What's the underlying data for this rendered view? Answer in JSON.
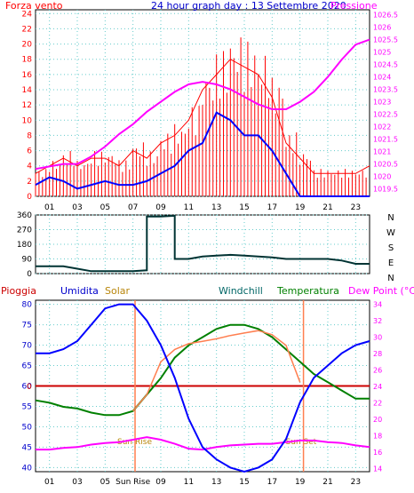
{
  "title": "24 hour graph day : 13 Settembre 2020",
  "hour_ticks": [
    "01",
    "03",
    "05",
    "07",
    "09",
    "11",
    "13",
    "15",
    "17",
    "19",
    "21",
    "23"
  ],
  "colors": {
    "wind": "#ff0000",
    "wind_avg": "#0000ff",
    "pressure": "#ff00ff",
    "direction": "#003333",
    "humidity": "#0000ff",
    "temperature": "#008000",
    "dewpoint": "#ff7f50",
    "solar": "#ff7f50",
    "rain": "#cc0000",
    "grid": "#66cccc"
  },
  "chart_data": [
    {
      "type": "line",
      "labels": {
        "left": "Forza vento",
        "right": "Pressione"
      },
      "y_left": {
        "ticks": [
          "0",
          "2",
          "4",
          "6",
          "8",
          "10",
          "12",
          "14",
          "16",
          "18",
          "20",
          "22",
          "24"
        ],
        "ylim": [
          0,
          24.5
        ]
      },
      "y_right": {
        "ticks": [
          "1019.5",
          "1020",
          "1020.5",
          "1021",
          "1021.5",
          "1022",
          "1022.5",
          "1023",
          "1023.5",
          "1024",
          "1024.5",
          "1025",
          "1025.5",
          "1026",
          "1026.5"
        ],
        "ylim": [
          1019.2,
          1026.7
        ]
      },
      "x_hours": [
        0,
        1,
        2,
        3,
        4,
        5,
        6,
        7,
        8,
        9,
        10,
        11,
        12,
        13,
        14,
        15,
        16,
        17,
        18,
        19,
        20,
        21,
        22,
        23,
        24
      ],
      "series": [
        {
          "axis": "right",
          "values": [
            1020.3,
            1020.4,
            1020.5,
            1020.5,
            1020.8,
            1021.2,
            1021.7,
            1022.1,
            1022.6,
            1023.0,
            1023.4,
            1023.7,
            1023.8,
            1023.7,
            1023.5,
            1023.2,
            1022.9,
            1022.7,
            1022.7,
            1023.0,
            1023.4,
            1024.0,
            1024.7,
            1025.3,
            1025.5
          ]
        },
        {
          "axis": "left",
          "values": [
            3,
            4,
            5,
            4,
            5,
            5,
            4,
            6,
            5,
            7,
            8,
            10,
            14,
            16,
            18,
            17,
            16,
            13,
            7,
            5,
            3,
            3,
            3,
            3,
            4
          ]
        },
        {
          "axis": "left",
          "values": [
            1.5,
            2.5,
            2,
            1,
            1.5,
            2,
            1.5,
            1.5,
            2,
            3,
            4,
            6,
            7,
            11,
            10,
            8,
            8,
            6,
            3,
            0,
            0,
            0,
            0,
            0,
            0
          ]
        }
      ]
    },
    {
      "type": "line",
      "labels": {
        "right_letters": [
          "N",
          "W",
          "S",
          "E",
          "N"
        ]
      },
      "y_left": {
        "ticks": [
          "0",
          "90",
          "180",
          "270",
          "360"
        ],
        "ylim": [
          0,
          360
        ]
      },
      "x_hours": [
        0,
        1,
        2,
        3,
        4,
        5,
        6,
        7,
        8,
        9,
        10,
        11,
        12,
        13,
        14,
        15,
        16,
        17,
        18,
        19,
        20,
        21,
        22,
        23,
        24
      ],
      "series": [
        {
          "values": [
            45,
            45,
            45,
            30,
            15,
            15,
            15,
            15,
            20,
            350,
            355,
            90,
            105,
            110,
            115,
            110,
            105,
            100,
            90,
            90,
            90,
            90,
            80,
            60,
            60
          ]
        }
      ]
    },
    {
      "type": "line",
      "labels": {
        "rain": "Pioggia",
        "humidity": "Umidita",
        "solar": "Solar",
        "windchill": "Windchill",
        "temperature": "Temperatura",
        "dewpoint": "Dew Point (°C)"
      },
      "y_left": {
        "ticks": [
          "40",
          "45",
          "50",
          "55",
          "60",
          "65",
          "70",
          "75",
          "80"
        ],
        "ylim": [
          39,
          81
        ]
      },
      "y_right": {
        "ticks": [
          "14",
          "16",
          "18",
          "20",
          "22",
          "24",
          "26",
          "28",
          "30",
          "32",
          "34"
        ],
        "ylim": [
          13.6,
          34.5
        ]
      },
      "rain_axis_label": "0",
      "x_hours": [
        0,
        1,
        2,
        3,
        4,
        5,
        6,
        7,
        8,
        9,
        10,
        11,
        12,
        13,
        14,
        15,
        16,
        17,
        18,
        19,
        20,
        21,
        22,
        23,
        24
      ],
      "series": [
        {
          "name": "Umidita",
          "axis": "left",
          "values": [
            68,
            68,
            69,
            71,
            75,
            79,
            80,
            80,
            76,
            70,
            62,
            52,
            45,
            42,
            40,
            39,
            40,
            42,
            47,
            56,
            62,
            65,
            68,
            70,
            71
          ]
        },
        {
          "name": "Temperatura",
          "axis": "right",
          "values": [
            22.3,
            22,
            21.5,
            21.3,
            20.8,
            20.5,
            20.5,
            21,
            23,
            25,
            27.5,
            29,
            30,
            31,
            31.5,
            31.5,
            31,
            30,
            28.5,
            27,
            25.5,
            24.5,
            23.5,
            22.5,
            22.5
          ]
        },
        {
          "name": "Dew Point (°C)",
          "axis": "right",
          "values": [
            null,
            null,
            null,
            null,
            null,
            null,
            null,
            21,
            23,
            27,
            28.5,
            29.2,
            29.5,
            29.8,
            30.2,
            30.5,
            30.8,
            30.3,
            29,
            24.5,
            null,
            null,
            null,
            null,
            null
          ]
        },
        {
          "name": "Solar",
          "axis": "right",
          "values": [
            16.3,
            16.3,
            16.5,
            16.6,
            16.9,
            17.1,
            17.2,
            17.5,
            17.8,
            17.5,
            17,
            16.4,
            16.3,
            16.6,
            16.8,
            16.9,
            17,
            17,
            17.2,
            17.4,
            17.4,
            17.2,
            17.1,
            16.8,
            16.6
          ]
        }
      ],
      "rain_value": 0,
      "annotations": [
        {
          "text": "Sun Rise",
          "hour": 7.15
        },
        {
          "text": "Sun Set",
          "hour": 19.25
        }
      ],
      "x_sunrise_label": "Sun Rise"
    }
  ]
}
